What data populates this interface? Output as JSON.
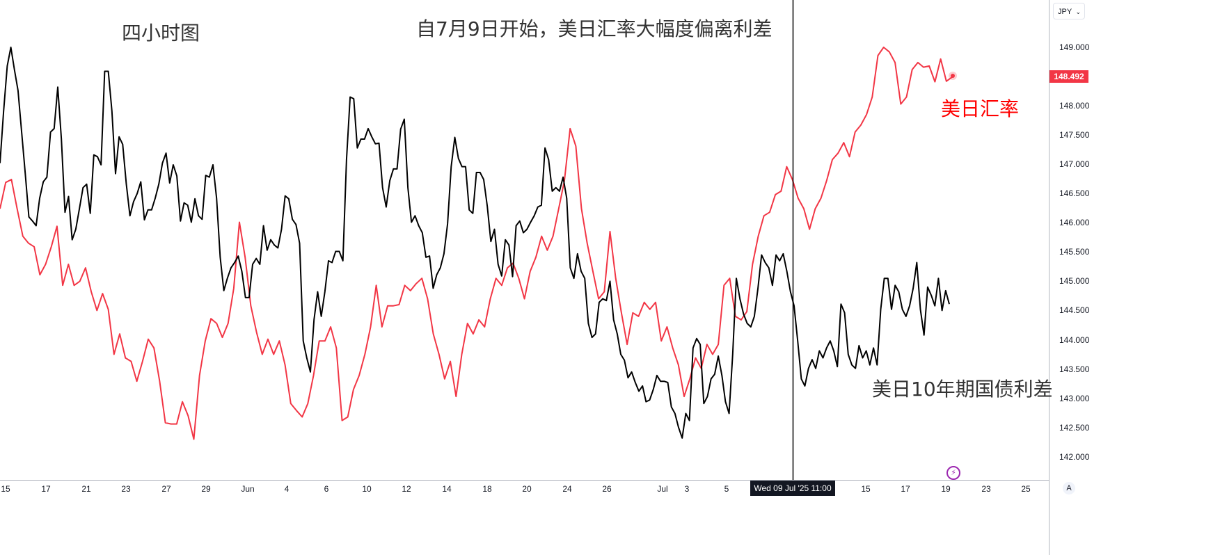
{
  "annotations": {
    "timeframe": "四小时图",
    "headline": "自7月9日开始，美日汇率大幅度偏离利差",
    "red_label": "美日汇率",
    "black_label": "美日10年期国债利差"
  },
  "currency_selector": "JPY",
  "crosshair_label": "Wed 09 Jul '25   11:00",
  "auto_scale_label": "A",
  "colors": {
    "usdjpy": "#f23645",
    "spread": "#000000",
    "badge": "#f23645",
    "event_icon": "#9c27b0"
  },
  "chart_data": {
    "type": "line",
    "ylim": [
      141.8,
      149.75
    ],
    "x_tick_labels": [
      "15",
      "17",
      "21",
      "23",
      "27",
      "29",
      "Jun",
      "4",
      "6",
      "10",
      "12",
      "14",
      "18",
      "20",
      "24",
      "26",
      "Jul",
      "3",
      "5",
      "15",
      "17",
      "19",
      "23",
      "25"
    ],
    "y_tick_labels": [
      "149.000",
      "148.000",
      "147.500",
      "147.000",
      "146.500",
      "146.000",
      "145.500",
      "145.000",
      "144.500",
      "144.000",
      "143.500",
      "143.000",
      "142.500",
      "142.000"
    ],
    "last_price": "148.492",
    "series": [
      {
        "name": "美日汇率",
        "color": "#f23645",
        "values": [
          146.24,
          146.69,
          146.74,
          146.24,
          145.77,
          145.65,
          145.59,
          145.11,
          145.29,
          145.59,
          145.94,
          144.93,
          145.29,
          144.93,
          145.0,
          145.23,
          144.82,
          144.5,
          144.79,
          144.52,
          143.75,
          144.1,
          143.69,
          143.63,
          143.29,
          143.63,
          144.01,
          143.86,
          143.29,
          142.58,
          142.56,
          142.56,
          142.94,
          142.7,
          142.3,
          143.39,
          143.98,
          144.36,
          144.28,
          144.04,
          144.28,
          144.88,
          146.01,
          145.41,
          144.58,
          144.13,
          143.75,
          144.01,
          143.75,
          143.98,
          143.57,
          142.91,
          142.79,
          142.68,
          142.91,
          143.39,
          143.98,
          143.98,
          144.22,
          143.86,
          142.62,
          142.68,
          143.15,
          143.39,
          143.75,
          144.22,
          144.93,
          144.22,
          144.58,
          144.58,
          144.6,
          144.93,
          144.84,
          144.96,
          145.05,
          144.7,
          144.1,
          143.75,
          143.33,
          143.63,
          143.03,
          143.75,
          144.28,
          144.1,
          144.34,
          144.22,
          144.7,
          145.05,
          144.93,
          145.23,
          145.31,
          145.05,
          144.7,
          145.17,
          145.41,
          145.77,
          145.53,
          145.77,
          146.24,
          146.72,
          147.61,
          147.31,
          146.24,
          145.65,
          145.17,
          144.7,
          144.82,
          145.85,
          145.05,
          144.46,
          143.92,
          144.46,
          144.4,
          144.64,
          144.52,
          144.64,
          143.98,
          144.22,
          143.86,
          143.57,
          143.03,
          143.33,
          143.69,
          143.51,
          143.92,
          143.75,
          143.92,
          144.93,
          145.05,
          144.4,
          144.34,
          144.48,
          145.29,
          145.77,
          146.12,
          146.18,
          146.48,
          146.54,
          146.96,
          146.74,
          146.42,
          146.24,
          145.89,
          146.24,
          146.42,
          146.72,
          147.08,
          147.19,
          147.37,
          147.13,
          147.55,
          147.67,
          147.85,
          148.15,
          148.86,
          149.0,
          148.92,
          148.74,
          148.03,
          148.15,
          148.62,
          148.74,
          148.66,
          148.68,
          148.41,
          148.8,
          148.42,
          148.49
        ]
      },
      {
        "name": "美日10年期国债利差",
        "color": "#000000",
        "values": [
          147.02,
          147.91,
          148.68,
          149.0,
          148.62,
          148.26,
          147.55,
          146.84,
          146.1,
          146.03,
          145.95,
          146.42,
          146.7,
          146.78,
          147.55,
          147.61,
          148.32,
          147.43,
          146.18,
          146.45,
          145.71,
          145.89,
          146.24,
          146.6,
          146.66,
          146.16,
          147.16,
          147.13,
          146.99,
          148.59,
          148.59,
          147.91,
          146.84,
          147.47,
          147.34,
          146.66,
          146.12,
          146.36,
          146.5,
          146.7,
          146.05,
          146.22,
          146.22,
          146.42,
          146.66,
          147.02,
          147.19,
          146.68,
          146.99,
          146.8,
          146.03,
          146.34,
          146.3,
          146.01,
          146.41,
          146.12,
          146.06,
          146.81,
          146.78,
          146.99,
          146.42,
          145.41,
          144.84,
          145.05,
          145.23,
          145.32,
          145.43,
          145.17,
          144.72,
          144.72,
          145.29,
          145.39,
          145.29,
          145.95,
          145.53,
          145.71,
          145.62,
          145.57,
          145.89,
          146.46,
          146.41,
          146.06,
          145.97,
          145.65,
          143.98,
          143.69,
          143.45,
          144.34,
          144.82,
          144.4,
          144.82,
          145.35,
          145.32,
          145.51,
          145.51,
          145.35,
          147.08,
          148.15,
          148.12,
          147.28,
          147.43,
          147.43,
          147.61,
          147.47,
          147.35,
          147.36,
          146.6,
          146.27,
          146.72,
          146.92,
          146.92,
          147.6,
          147.77,
          146.6,
          146.01,
          146.12,
          145.95,
          145.83,
          145.41,
          145.43,
          144.88,
          145.11,
          145.23,
          145.47,
          145.98,
          146.96,
          147.46,
          147.1,
          146.96,
          146.96,
          146.22,
          146.16,
          146.86,
          146.86,
          146.74,
          146.28,
          145.68,
          145.89,
          145.29,
          145.09,
          145.71,
          145.62,
          145.08,
          145.95,
          146.03,
          145.83,
          145.89,
          146.01,
          146.12,
          146.27,
          146.3,
          147.28,
          147.08,
          146.54,
          146.6,
          146.54,
          146.78,
          146.42,
          145.23,
          145.05,
          145.47,
          145.17,
          145.05,
          144.28,
          144.04,
          144.1,
          144.64,
          144.7,
          144.67,
          145.0,
          144.34,
          144.1,
          143.75,
          143.65,
          143.35,
          143.45,
          143.27,
          143.12,
          143.21,
          142.94,
          142.97,
          143.15,
          143.39,
          143.29,
          143.29,
          143.27,
          142.85,
          142.74,
          142.5,
          142.32,
          142.74,
          142.62,
          143.86,
          144.02,
          143.92,
          142.91,
          143.03,
          143.33,
          143.41,
          143.72,
          143.39,
          142.94,
          142.74,
          143.75,
          145.05,
          144.7,
          144.44,
          144.28,
          144.22,
          144.4,
          144.88,
          145.45,
          145.32,
          145.23,
          144.93,
          145.45,
          145.35,
          145.47,
          145.17,
          144.82,
          144.58,
          143.98,
          143.33,
          143.21,
          143.51,
          143.66,
          143.51,
          143.81,
          143.69,
          143.86,
          143.98,
          143.81,
          143.54,
          144.61,
          144.46,
          143.75,
          143.57,
          143.51,
          143.9,
          143.69,
          143.81,
          143.57,
          143.86,
          143.57,
          144.52,
          145.05,
          145.05,
          144.52,
          144.93,
          144.82,
          144.52,
          144.4,
          144.58,
          144.88,
          145.32,
          144.52,
          144.08,
          144.9,
          144.76,
          144.58,
          145.05,
          144.5,
          144.84,
          144.61
        ]
      }
    ]
  }
}
